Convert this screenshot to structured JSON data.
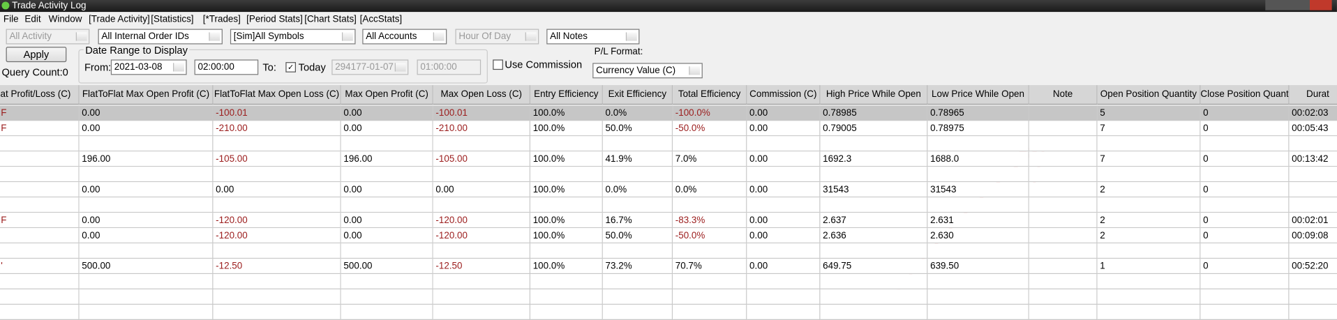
{
  "window": {
    "title": "Trade Activity Log",
    "menu": [
      "File",
      "Edit",
      "Window",
      "[Trade Activity]",
      "[Statistics]",
      "[*Trades]",
      "[Period Stats]",
      "[Chart Stats]",
      "[AccStats]"
    ]
  },
  "filters": {
    "activity": "All Activity",
    "order_ids": "All Internal Order IDs",
    "symbols": "[Sim]All Symbols",
    "accounts": "All Accounts",
    "hour": "Hour Of Day",
    "notes": "All Notes"
  },
  "apply": "Apply",
  "query_count": "Query Count:0",
  "date_range": {
    "title": "Date Range to Display",
    "from_label": "From:",
    "from_date": "2021-03-08",
    "from_time": "02:00:00",
    "to_label": "To:",
    "today_label": "Today",
    "to_date": "294177-01-07",
    "to_time": "01:00:00"
  },
  "use_commission": "Use Commission",
  "pl_format": {
    "label": "P/L Format:",
    "value": "Currency Value (C)"
  },
  "table": {
    "columns": [
      "lat Profit/Loss (C)",
      "FlatToFlat Max Open Profit (C)",
      "FlatToFlat Max Open Loss (C)",
      "Max Open Profit (C)",
      "Max Open Loss (C)",
      "Entry Efficiency",
      "Exit Efficiency",
      "Total Efficiency",
      "Commission (C)",
      "High Price While Open",
      "Low Price While Open",
      "Note",
      "Open Position Quantity",
      "Close Position Quantity",
      "Durat"
    ],
    "rows": [
      [
        "F",
        "0.00",
        "-100.01",
        "0.00",
        "-100.01",
        "100.0%",
        "0.0%",
        "-100.0%",
        "0.00",
        "0.78985",
        "0.78965",
        null,
        "5",
        "0",
        "00:02:03"
      ],
      [
        "F",
        "0.00",
        "-210.00",
        "0.00",
        "-210.00",
        "100.0%",
        "50.0%",
        "-50.0%",
        "0.00",
        "0.79005",
        "0.78975",
        null,
        "7",
        "0",
        "00:05:43"
      ],
      null,
      [
        null,
        "196.00",
        "-105.00",
        "196.00",
        "-105.00",
        "100.0%",
        "41.9%",
        "7.0%",
        "0.00",
        "1692.3",
        "1688.0",
        null,
        "7",
        "0",
        "00:13:42"
      ],
      null,
      [
        null,
        "0.00",
        "0.00",
        "0.00",
        "0.00",
        "100.0%",
        "0.0%",
        "0.0%",
        "0.00",
        "31543",
        "31543",
        null,
        "2",
        "0",
        null
      ],
      null,
      [
        "F",
        "0.00",
        "-120.00",
        "0.00",
        "-120.00",
        "100.0%",
        "16.7%",
        "-83.3%",
        "0.00",
        "2.637",
        "2.631",
        null,
        "2",
        "0",
        "00:02:01"
      ],
      [
        null,
        "0.00",
        "-120.00",
        "0.00",
        "-120.00",
        "100.0%",
        "50.0%",
        "-50.0%",
        "0.00",
        "2.636",
        "2.630",
        null,
        "2",
        "0",
        "00:09:08"
      ],
      null,
      [
        "'",
        "500.00",
        "-12.50",
        "500.00",
        "-12.50",
        "100.0%",
        "73.2%",
        "70.7%",
        "0.00",
        "649.75",
        "639.50",
        null,
        "1",
        "0",
        "00:52:20"
      ],
      null,
      null,
      null
    ]
  }
}
